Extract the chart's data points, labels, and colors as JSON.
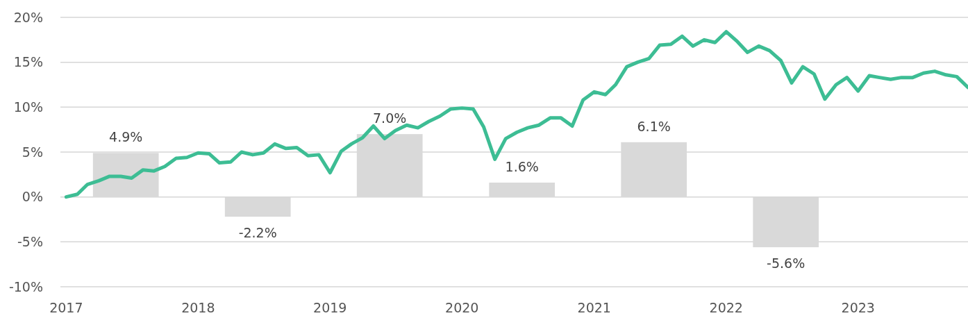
{
  "chart_data": {
    "type": "bar",
    "xlim": [
      "2016-12-16",
      "2023-11-01"
    ],
    "xticks": [
      {
        "value": "2017-01-01",
        "label": "2017"
      },
      {
        "value": "2018-01-01",
        "label": "2018"
      },
      {
        "value": "2019-01-01",
        "label": "2019"
      },
      {
        "value": "2020-01-01",
        "label": "2020"
      },
      {
        "value": "2021-01-01",
        "label": "2021"
      },
      {
        "value": "2022-01-01",
        "label": "2022"
      },
      {
        "value": "2023-01-01",
        "label": "2023"
      }
    ],
    "ylim": [
      -10,
      20
    ],
    "yticks": [
      {
        "value": -10,
        "label": "-10%"
      },
      {
        "value": -5,
        "label": "-5%"
      },
      {
        "value": 0,
        "label": "0%"
      },
      {
        "value": 5,
        "label": "5%"
      },
      {
        "value": 10,
        "label": "10%"
      },
      {
        "value": 15,
        "label": "15%"
      },
      {
        "value": 20,
        "label": "20%"
      }
    ],
    "grid": "y",
    "series": [
      {
        "color": "#d9d9d9",
        "x": [
          "2017-06-15",
          "2018-06-15",
          "2019-06-15",
          "2020-06-15",
          "2021-06-15",
          "2022-06-15"
        ],
        "values": [
          4.9,
          -2.2,
          7.0,
          1.6,
          6.1,
          -5.6
        ],
        "value_labels": [
          "4.9%",
          "-2.2%",
          "7.0%",
          "1.6%",
          "6.1%",
          "-5.6%"
        ]
      },
      {
        "type": "line",
        "color": "#3dbd94",
        "x": [
          "2017-01",
          "2017-02",
          "2017-03",
          "2017-04",
          "2017-05",
          "2017-06",
          "2017-07",
          "2017-08",
          "2017-09",
          "2017-10",
          "2017-11",
          "2017-12",
          "2018-01",
          "2018-02",
          "2018-03",
          "2018-04",
          "2018-05",
          "2018-06",
          "2018-07",
          "2018-08",
          "2018-09",
          "2018-10",
          "2018-11",
          "2018-12",
          "2019-01",
          "2019-02",
          "2019-03",
          "2019-04",
          "2019-05",
          "2019-06",
          "2019-07",
          "2019-08",
          "2019-09",
          "2019-10",
          "2019-11",
          "2019-12",
          "2020-01",
          "2020-02",
          "2020-03",
          "2020-04",
          "2020-05",
          "2020-06",
          "2020-07",
          "2020-08",
          "2020-09",
          "2020-10",
          "2020-11",
          "2020-12",
          "2021-01",
          "2021-02",
          "2021-03",
          "2021-04",
          "2021-05",
          "2021-06",
          "2021-07",
          "2021-08",
          "2021-09",
          "2021-10",
          "2021-11",
          "2021-12",
          "2022-01",
          "2022-02",
          "2022-03",
          "2022-04",
          "2022-05",
          "2022-06",
          "2022-07",
          "2022-08",
          "2022-09",
          "2022-10",
          "2022-11",
          "2022-12",
          "2023-01",
          "2023-02",
          "2023-03",
          "2023-04",
          "2023-05",
          "2023-06",
          "2023-07",
          "2023-08",
          "2023-09",
          "2023-10",
          "2023-11"
        ],
        "values": [
          0,
          0.3,
          1.4,
          1.8,
          2.3,
          2.3,
          2.1,
          3.0,
          2.9,
          3.4,
          4.3,
          4.4,
          4.9,
          4.8,
          3.8,
          3.9,
          5.0,
          4.7,
          4.9,
          5.9,
          5.4,
          5.5,
          4.6,
          4.7,
          2.7,
          5.1,
          5.9,
          6.6,
          7.9,
          6.5,
          7.4,
          8.0,
          7.7,
          8.4,
          9.0,
          9.8,
          9.9,
          9.8,
          7.8,
          4.2,
          6.5,
          7.2,
          7.7,
          8.0,
          8.8,
          8.8,
          7.9,
          10.8,
          11.7,
          11.4,
          12.5,
          14.5,
          15.0,
          15.4,
          16.9,
          17.0,
          17.9,
          16.8,
          17.5,
          17.2,
          18.4,
          17.3,
          16.1,
          16.8,
          16.3,
          15.2,
          12.7,
          14.5,
          13.7,
          10.9,
          12.5,
          13.3,
          11.8,
          13.5,
          13.3,
          13.1,
          13.3,
          13.3,
          13.8,
          14.0,
          13.6,
          13.4,
          12.2
        ]
      }
    ]
  }
}
